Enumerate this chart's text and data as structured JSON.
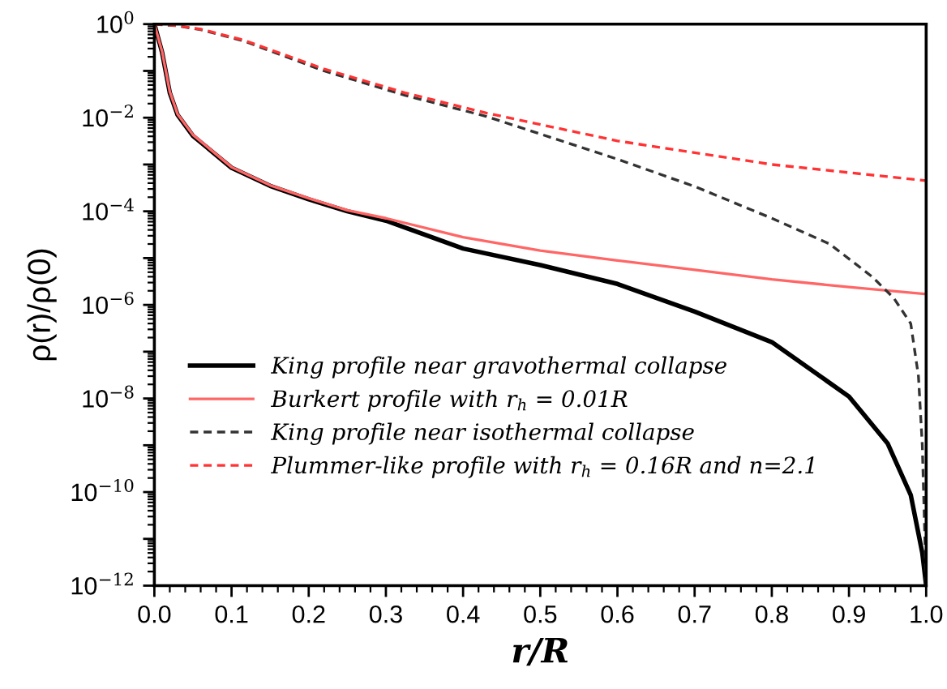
{
  "chart_data": {
    "type": "line",
    "xlabel": "r/R",
    "ylabel": "ρ(r)/ρ(0)",
    "log": "y",
    "grid": false,
    "legend": "left",
    "xlim": [
      0,
      1
    ],
    "xticks": [
      {
        "value": 0,
        "label": "0.0"
      },
      0.1,
      0.2,
      0.3,
      0.4,
      0.5,
      0.6,
      0.7,
      0.8,
      0.9,
      {
        "value": 1,
        "label": "1.0"
      }
    ],
    "ylim": [
      1e-12,
      1
    ],
    "yticks": [
      {
        "value": 1,
        "label": "10$^{0}$"
      },
      {
        "value": 0.1,
        "label": null
      },
      {
        "value": 0.01,
        "label": "10$^{−2}$"
      },
      {
        "value": 0.001,
        "label": null
      },
      {
        "value": 0.0001,
        "label": "10$^{−4}$"
      },
      {
        "value": 1e-05,
        "label": null
      },
      {
        "value": 1e-06,
        "label": "10$^{−6}$"
      },
      {
        "value": 1e-07,
        "label": null
      },
      {
        "value": 1e-08,
        "label": "10$^{−8}$"
      },
      {
        "value": 1e-09,
        "label": null
      },
      {
        "value": 1e-10,
        "label": "10$^{−10}$"
      },
      {
        "value": 1e-11,
        "label": null
      },
      {
        "value": 1e-12,
        "label": "10$^{−12}$"
      }
    ],
    "series": [
      {
        "name": "King profile near gravothermal collapse",
        "color": "#000000",
        "line_style": "solid",
        "x": [
          0,
          0.01,
          0.02,
          0.03,
          0.05,
          0.1,
          0.15,
          0.2,
          0.25,
          0.3,
          0.4,
          0.5,
          0.6,
          0.7,
          0.8,
          0.9,
          0.95,
          0.98,
          0.995,
          1.0
        ],
        "values": [
          1,
          0.25,
          0.034,
          0.0115,
          0.0041,
          0.00085,
          0.00035,
          0.00018,
          0.0001,
          6.3e-05,
          1.6e-05,
          7.1e-06,
          2.8e-06,
          7.2e-07,
          1.6e-07,
          1.1e-08,
          1.1e-09,
          8.7e-11,
          5e-12,
          1e-12
        ]
      },
      {
        "name": "Burkert profile with r$_{h}$ = 0.01R",
        "color": "#ff6666",
        "line_style": "solid",
        "x": [
          0,
          0.01,
          0.02,
          0.03,
          0.05,
          0.1,
          0.15,
          0.2,
          0.25,
          0.3,
          0.4,
          0.5,
          0.6,
          0.7,
          0.8,
          0.9,
          1.0
        ],
        "values": [
          1,
          0.26,
          0.036,
          0.012,
          0.0043,
          0.00088,
          0.00036,
          0.00019,
          0.000105,
          7.1e-05,
          2.8e-05,
          1.45e-05,
          8.9e-06,
          5.6e-06,
          3.5e-06,
          2.4e-06,
          1.7e-06
        ]
      },
      {
        "name": "King profile near isothermal collapse",
        "color": "#333333",
        "line_style": "dashed",
        "x": [
          0,
          0.03,
          0.06,
          0.115,
          0.22,
          0.325,
          0.43,
          0.6,
          0.7,
          0.8,
          0.875,
          0.93,
          0.958,
          0.98,
          0.99,
          0.995,
          1.0
        ],
        "values": [
          1,
          0.92,
          0.76,
          0.44,
          0.1,
          0.03,
          0.0107,
          0.0013,
          0.00034,
          7.1e-05,
          2e-05,
          4e-06,
          1.4e-06,
          4e-07,
          3e-08,
          1e-09,
          1e-12
        ]
      },
      {
        "name": "Plummer-like profile with r$_{h}$ = 0.16R and n=2.1",
        "color": "#ff3333",
        "line_style": "dashed",
        "x": [
          0,
          0.03,
          0.06,
          0.115,
          0.22,
          0.325,
          0.43,
          0.6,
          0.8,
          1.0
        ],
        "values": [
          1,
          0.93,
          0.78,
          0.46,
          0.11,
          0.034,
          0.0126,
          0.0032,
          0.001,
          0.00045
        ]
      }
    ]
  }
}
